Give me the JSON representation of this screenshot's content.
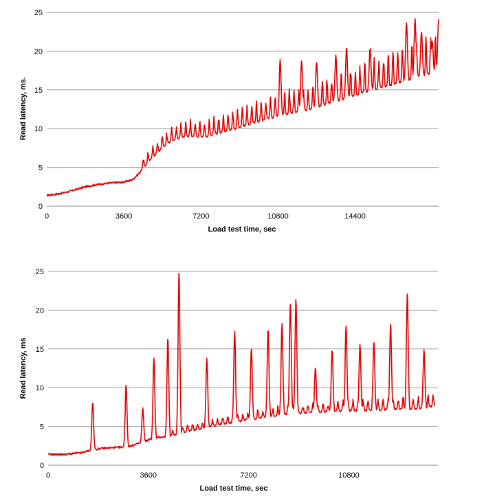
{
  "chart_data": [
    {
      "type": "line",
      "title": "",
      "xlabel": "Load test time, sec",
      "ylabel": "Read latency, ms.",
      "xlim": [
        0,
        18300
      ],
      "ylim": [
        0,
        25
      ],
      "x_ticks": [
        0,
        3600,
        7200,
        10800,
        14400
      ],
      "y_ticks": [
        0,
        5,
        10,
        15,
        20,
        25
      ],
      "grid": "horizontal",
      "series": [
        {
          "name": "Read latency",
          "color": "#e00000",
          "x": [
            0,
            600,
            1200,
            1800,
            2400,
            3000,
            3600,
            4000,
            4300,
            4600,
            4900,
            5200,
            5500,
            5800,
            6200,
            6600,
            7000,
            7200,
            7600,
            8000,
            8400,
            8800,
            9200,
            9600,
            10000,
            10400,
            10800,
            11200,
            11600,
            12000,
            12400,
            12800,
            13200,
            13600,
            14000,
            14400,
            14800,
            15200,
            15600,
            16000,
            16400,
            16800,
            17200,
            17600,
            18000,
            18300
          ],
          "values": [
            1.4,
            1.6,
            2.0,
            2.5,
            2.8,
            3.0,
            3.1,
            3.4,
            4.2,
            5.2,
            6.2,
            7.0,
            7.8,
            8.4,
            8.8,
            9.0,
            9.0,
            8.9,
            9.1,
            9.4,
            9.7,
            10.0,
            10.3,
            10.7,
            11.0,
            11.3,
            11.6,
            11.9,
            12.1,
            12.3,
            12.6,
            12.9,
            13.3,
            13.6,
            13.9,
            14.3,
            14.7,
            15.0,
            15.3,
            15.6,
            15.9,
            16.2,
            16.6,
            16.9,
            17.2,
            17.5
          ],
          "peak_x": [
            10900,
            11900,
            12600,
            13500,
            14000,
            15100,
            16800,
            17200,
            17500,
            18000,
            18300
          ],
          "peak_values": [
            18.9,
            18.8,
            18.6,
            19.5,
            20.5,
            20.4,
            23.7,
            24.2,
            22.5,
            21.3,
            24.1
          ]
        }
      ]
    },
    {
      "type": "line",
      "title": "",
      "xlabel": "Load test time, sec",
      "ylabel": "Read latency, ms",
      "xlim": [
        0,
        14000
      ],
      "ylim": [
        0,
        25
      ],
      "x_ticks": [
        0,
        3600,
        7200,
        10800
      ],
      "y_ticks": [
        0,
        5,
        10,
        15,
        20,
        25
      ],
      "grid": "horizontal",
      "series": [
        {
          "name": "Read latency",
          "color": "#e00000",
          "x": [
            0,
            600,
            1200,
            1600,
            2000,
            2600,
            3000,
            3400,
            3800,
            4200,
            4600,
            5000,
            5600,
            6200,
            6800,
            7200,
            7800,
            8400,
            8800,
            9400,
            10000,
            10800,
            11600,
            12400,
            13200,
            13900
          ],
          "values": [
            1.4,
            1.4,
            1.6,
            2.0,
            2.2,
            2.3,
            2.5,
            3.0,
            3.5,
            3.7,
            4.0,
            4.4,
            4.8,
            5.3,
            5.6,
            5.9,
            6.2,
            6.5,
            6.7,
            6.8,
            6.9,
            7.0,
            7.1,
            7.2,
            7.3,
            7.6
          ],
          "peak_x": [
            1600,
            2800,
            3400,
            3800,
            4300,
            4700,
            5700,
            6700,
            7300,
            7900,
            8400,
            8700,
            8900,
            9600,
            10200,
            10700,
            11200,
            11700,
            12300,
            12900,
            13500
          ],
          "peak_values": [
            8.1,
            10.4,
            7.4,
            13.8,
            16.5,
            25.0,
            13.8,
            17.3,
            15.1,
            17.6,
            18.3,
            20.9,
            21.5,
            12.6,
            14.9,
            18.0,
            15.6,
            16.0,
            18.4,
            22.2,
            14.9
          ]
        }
      ]
    }
  ]
}
